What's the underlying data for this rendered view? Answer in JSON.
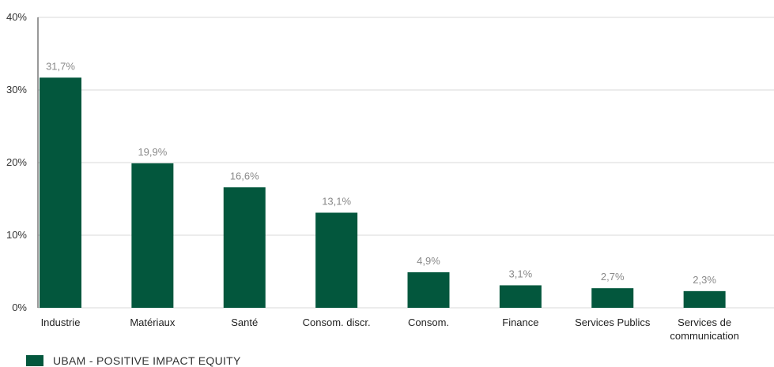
{
  "chart_data": {
    "type": "bar",
    "categories": [
      "Industrie",
      "Matériaux",
      "Santé",
      "Consom. discr.",
      "Consom.",
      "Finance",
      "Services Publics",
      "Services de communication"
    ],
    "category_lines": [
      [
        "Industrie"
      ],
      [
        "Matériaux"
      ],
      [
        "Santé"
      ],
      [
        "Consom. discr."
      ],
      [
        "Consom."
      ],
      [
        "Finance"
      ],
      [
        "Services Publics"
      ],
      [
        "Services de",
        "communication"
      ]
    ],
    "series": [
      {
        "name": "UBAM - POSITIVE IMPACT EQUITY",
        "values": [
          31.7,
          19.9,
          16.6,
          13.1,
          4.9,
          3.1,
          2.7,
          2.3
        ],
        "labels": [
          "31,7%",
          "19,9%",
          "16,6%",
          "13,1%",
          "4,9%",
          "3,1%",
          "2,7%",
          "2,3%"
        ]
      }
    ],
    "ylim": [
      0,
      40
    ],
    "yticks": [
      0,
      10,
      20,
      30,
      40
    ],
    "ytick_labels": [
      "0%",
      "10%",
      "20%",
      "30%",
      "40%"
    ],
    "grid": true,
    "legend": "bottom-left",
    "bar_color": "#03573d",
    "grid_color": "#d9d9d9"
  }
}
